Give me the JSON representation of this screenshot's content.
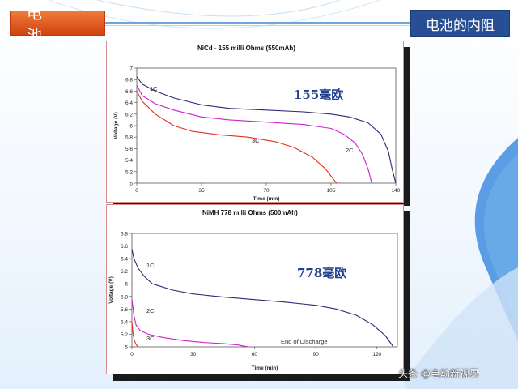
{
  "header": {
    "title_left": "电  池",
    "title_right": "电池的内阻"
  },
  "watermark": "头条 @电动新视界",
  "chart_data": [
    {
      "type": "line",
      "title": "NiCd - 155 milli Ohms (550mAh)",
      "annotation": "155毫欧",
      "xlabel": "Time (min)",
      "ylabel": "Voltage (V)",
      "xlim": [
        0,
        140
      ],
      "ylim": [
        5,
        7
      ],
      "xticks": [
        "0",
        "35",
        "70",
        "105",
        "140"
      ],
      "yticks": [
        "5",
        "5.2",
        "5.4",
        "5.6",
        "5.8",
        "6",
        "6.2",
        "6.4",
        "6.6",
        "6.8",
        "7"
      ],
      "grid": false,
      "series": [
        {
          "name": "1C",
          "color": "#2b2b7a",
          "x": [
            0,
            3,
            10,
            20,
            35,
            50,
            70,
            90,
            105,
            115,
            125,
            132,
            136,
            138,
            140
          ],
          "y": [
            6.85,
            6.72,
            6.6,
            6.48,
            6.36,
            6.3,
            6.27,
            6.24,
            6.2,
            6.15,
            6.05,
            5.85,
            5.55,
            5.25,
            5.0
          ]
        },
        {
          "name": "2C",
          "color": "#cc22cc",
          "x": [
            0,
            3,
            10,
            20,
            35,
            50,
            70,
            90,
            105,
            112,
            118,
            122,
            125,
            127
          ],
          "y": [
            6.7,
            6.52,
            6.38,
            6.27,
            6.15,
            6.1,
            6.06,
            6.02,
            5.95,
            5.85,
            5.7,
            5.5,
            5.25,
            5.0
          ]
        },
        {
          "name": "3C",
          "color": "#e0301e",
          "x": [
            0,
            3,
            10,
            20,
            30,
            45,
            60,
            75,
            85,
            95,
            102,
            106,
            108
          ],
          "y": [
            6.6,
            6.42,
            6.2,
            6.0,
            5.9,
            5.84,
            5.8,
            5.72,
            5.62,
            5.45,
            5.25,
            5.08,
            5.0
          ]
        }
      ],
      "series_labels": [
        "1C",
        "2C",
        "3C"
      ]
    },
    {
      "type": "line",
      "title": "NiMH 778 milli Ohms (500mAh)",
      "annotation": "778毫欧",
      "xlabel": "Time (min)",
      "ylabel": "Voltage (V)",
      "xlim": [
        0,
        130
      ],
      "ylim": [
        5,
        6.8
      ],
      "xticks": [
        "0",
        "30",
        "60",
        "90",
        "120"
      ],
      "yticks": [
        "5",
        "5.2",
        "5.4",
        "5.6",
        "5.8",
        "6",
        "6.2",
        "6.4",
        "6.6",
        "6.8"
      ],
      "grid": false,
      "note": "End of Discharge",
      "series": [
        {
          "name": "1C",
          "color": "#2b2b7a",
          "x": [
            0,
            1,
            3,
            6,
            10,
            20,
            30,
            45,
            60,
            75,
            90,
            100,
            110,
            118,
            124,
            128
          ],
          "y": [
            6.55,
            6.4,
            6.25,
            6.12,
            6.0,
            5.9,
            5.84,
            5.79,
            5.75,
            5.71,
            5.66,
            5.6,
            5.5,
            5.35,
            5.18,
            5.0
          ]
        },
        {
          "name": "2C",
          "color": "#cc22cc",
          "x": [
            0,
            1,
            2,
            4,
            8,
            15,
            25,
            35,
            45,
            52,
            55,
            57
          ],
          "y": [
            5.75,
            5.5,
            5.35,
            5.26,
            5.2,
            5.15,
            5.1,
            5.07,
            5.05,
            5.03,
            5.01,
            5.0
          ]
        },
        {
          "name": "3C",
          "color": "#e0301e",
          "x": [
            0,
            0.5,
            1.2,
            2,
            3
          ],
          "y": [
            5.4,
            5.22,
            5.1,
            5.04,
            5.0
          ]
        }
      ],
      "series_labels": [
        "1C",
        "2C",
        "3C"
      ]
    }
  ]
}
